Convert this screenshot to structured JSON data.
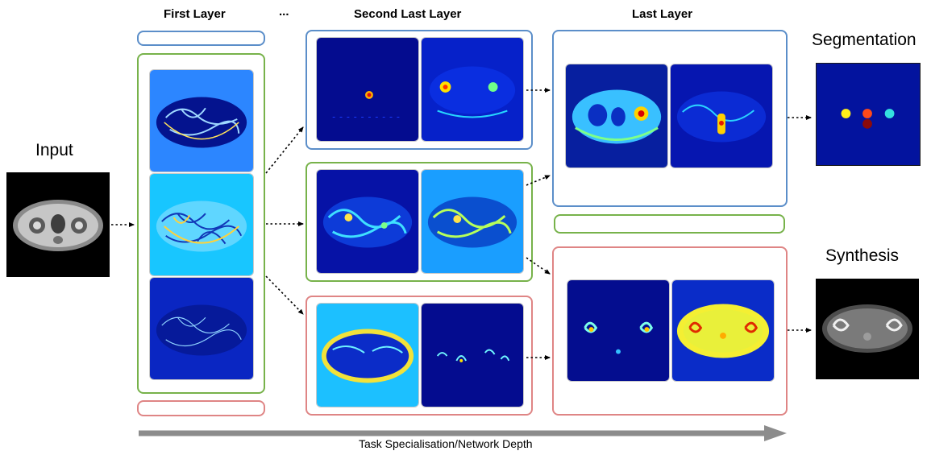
{
  "labels": {
    "first_layer": "First Layer",
    "ellipsis": "...",
    "second_last_layer": "Second Last Layer",
    "last_layer": "Last Layer",
    "segmentation": "Segmentation",
    "input": "Input",
    "synthesis": "Synthesis",
    "axis": "Task Specialisation/Network Depth"
  },
  "colors": {
    "segmentation_task": "#5b8ec9",
    "shared": "#77b24a",
    "synthesis_task": "#df8585",
    "depth_arrow": "#8c8c8c"
  },
  "icons": [
    "mri-input-image",
    "feature-map",
    "segmentation-output",
    "ct-synthesis-output"
  ]
}
